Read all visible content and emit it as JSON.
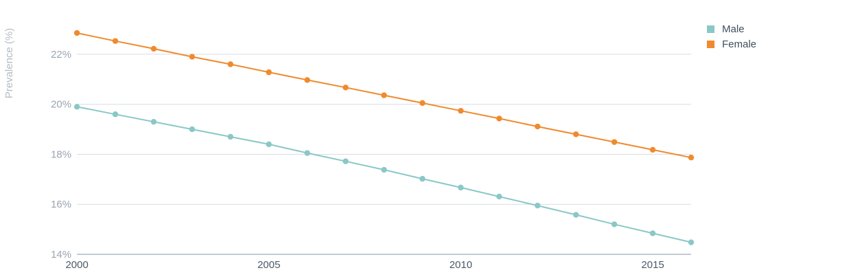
{
  "chart_data": {
    "type": "line",
    "ylabel": "Prevalence (%)",
    "xlabel": "",
    "x": [
      2000,
      2001,
      2002,
      2003,
      2004,
      2005,
      2006,
      2007,
      2008,
      2009,
      2010,
      2011,
      2012,
      2013,
      2014,
      2015,
      2016
    ],
    "xlim": [
      2000,
      2016
    ],
    "ylim": [
      14,
      23.4
    ],
    "x_ticks": [
      2000,
      2005,
      2010,
      2015
    ],
    "y_ticks": [
      14,
      16,
      18,
      20,
      22
    ],
    "y_tick_suffix": "%",
    "grid": "horizontal",
    "legend_position": "top-right",
    "series": [
      {
        "name": "Male",
        "color": "#89c8c6",
        "values": [
          19.9,
          19.6,
          19.3,
          19.0,
          18.7,
          18.4,
          18.05,
          17.72,
          17.38,
          17.02,
          16.67,
          16.31,
          15.95,
          15.58,
          15.2,
          14.84,
          14.48
        ]
      },
      {
        "name": "Female",
        "color": "#f08a2c",
        "values": [
          22.85,
          22.53,
          22.22,
          21.9,
          21.6,
          21.28,
          20.97,
          20.67,
          20.36,
          20.05,
          19.74,
          19.43,
          19.11,
          18.8,
          18.49,
          18.18,
          17.87
        ]
      }
    ]
  }
}
